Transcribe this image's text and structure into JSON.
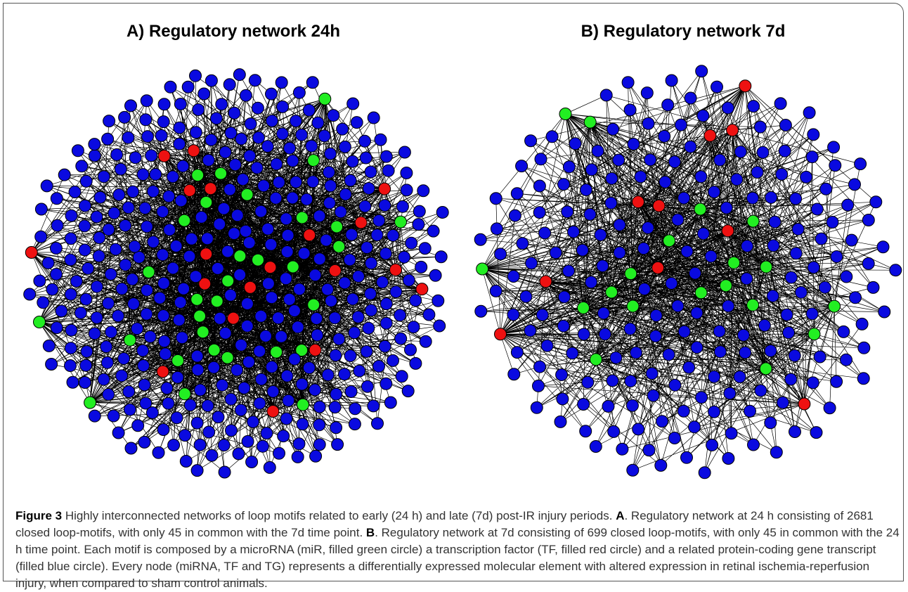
{
  "figure": {
    "panels": [
      {
        "title": "A) Regulatory network 24h"
      },
      {
        "title": "B) Regulatory network 7d"
      }
    ],
    "caption": {
      "label": "Figure 3",
      "intro": " Highly interconnected networks of loop motifs related to early (24 h) and late (7d) post-IR injury periods. ",
      "part_a_label": "A",
      "part_a_text": ". Regulatory network at 24 h consisting of 2681 closed loop-motifs, with only 45 in common with the 7d time point. ",
      "part_b_label": "B",
      "part_b_text": ". Regulatory network at 7d consisting of 699 closed loop-motifs, with only 45 in common with the 24 h time point. Each motif is composed by a microRNA (miR, filled green circle) a transcription factor (TF, filled red circle) and a related protein-coding gene transcript (filled blue circle). Every node (miRNA, TF and TG) represents a differentially expressed molecular element with altered expression in retinal ischemia-reperfusion injury, when compared to sham control animals."
    }
  }
}
